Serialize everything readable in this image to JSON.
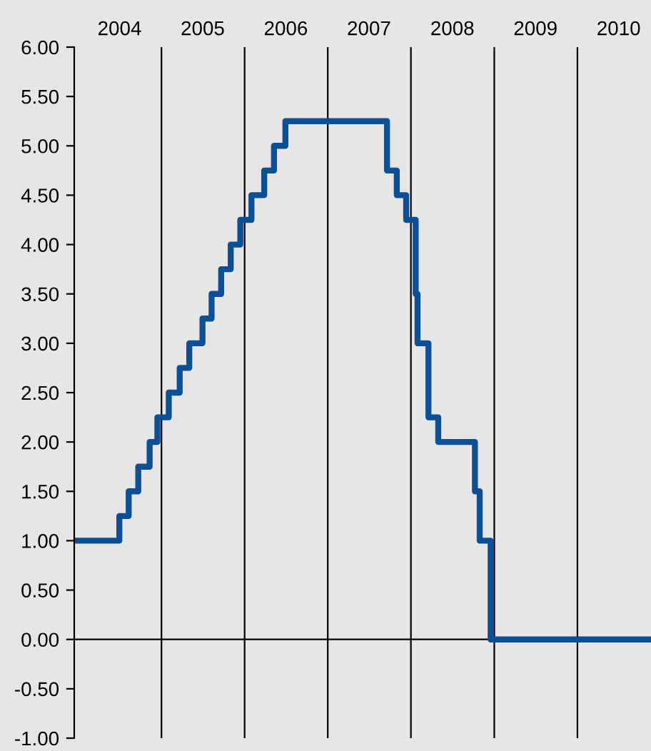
{
  "chart_data": {
    "type": "step",
    "x": [
      "2003-12-15",
      "2004-06-30",
      "2004-08-10",
      "2004-09-21",
      "2004-11-10",
      "2004-12-14",
      "2005-02-02",
      "2005-03-22",
      "2005-05-03",
      "2005-06-30",
      "2005-08-09",
      "2005-09-20",
      "2005-11-01",
      "2005-12-13",
      "2006-01-31",
      "2006-03-28",
      "2006-05-10",
      "2006-06-29",
      "2007-09-18",
      "2007-10-31",
      "2007-12-11",
      "2008-01-22",
      "2008-01-30",
      "2008-03-18",
      "2008-04-30",
      "2008-10-08",
      "2008-10-29",
      "2008-12-16",
      "2010-11-20"
    ],
    "series": [
      {
        "color": "#0b4f94",
        "values": [
          1.0,
          1.25,
          1.5,
          1.75,
          2.0,
          2.25,
          2.5,
          2.75,
          3.0,
          3.25,
          3.5,
          3.75,
          4.0,
          4.25,
          4.5,
          4.75,
          5.0,
          5.25,
          4.75,
          4.5,
          4.25,
          3.5,
          3.0,
          2.25,
          2.0,
          1.5,
          1.0,
          0.0,
          0.0
        ]
      }
    ],
    "xlim": [
      "2003-12-15",
      "2010-11-20"
    ],
    "xticks": [
      {
        "value": "2004-07-01",
        "label": "2004"
      },
      {
        "value": "2005-07-01",
        "label": "2005"
      },
      {
        "value": "2006-07-01",
        "label": "2006"
      },
      {
        "value": "2007-07-01",
        "label": "2007"
      },
      {
        "value": "2008-07-01",
        "label": "2008"
      },
      {
        "value": "2009-07-01",
        "label": "2009"
      },
      {
        "value": "2010-07-01",
        "label": "2010"
      }
    ],
    "ylim": [
      -1,
      6
    ],
    "yticks": [
      {
        "value": -1,
        "label": "-1.00"
      },
      {
        "value": -0.5,
        "label": "-0.50"
      },
      {
        "value": 0,
        "label": "0.00"
      },
      {
        "value": 0.5,
        "label": "0.50"
      },
      {
        "value": 1,
        "label": "1.00"
      },
      {
        "value": 1.5,
        "label": "1.50"
      },
      {
        "value": 2,
        "label": "2.00"
      },
      {
        "value": 2.5,
        "label": "2.50"
      },
      {
        "value": 3,
        "label": "3.00"
      },
      {
        "value": 3.5,
        "label": "3.50"
      },
      {
        "value": 4,
        "label": "4.00"
      },
      {
        "value": 4.5,
        "label": "4.50"
      },
      {
        "value": 5,
        "label": "5.00"
      },
      {
        "value": 5.5,
        "label": "5.50"
      },
      {
        "value": 6,
        "label": "6.00"
      }
    ],
    "ref_lines": [
      {
        "axis": "y",
        "value": 0,
        "color": "#000000"
      },
      {
        "axis": "x",
        "value": "2005-01-01",
        "color": "#000000"
      },
      {
        "axis": "x",
        "value": "2006-01-01",
        "color": "#000000"
      },
      {
        "axis": "x",
        "value": "2007-01-01",
        "color": "#000000"
      },
      {
        "axis": "x",
        "value": "2008-01-01",
        "color": "#000000"
      },
      {
        "axis": "x",
        "value": "2009-01-01",
        "color": "#000000"
      },
      {
        "axis": "x",
        "value": "2010-01-01",
        "color": "#000000"
      }
    ],
    "line_style": "solid",
    "marker": "none",
    "grid": false,
    "legend": false
  }
}
